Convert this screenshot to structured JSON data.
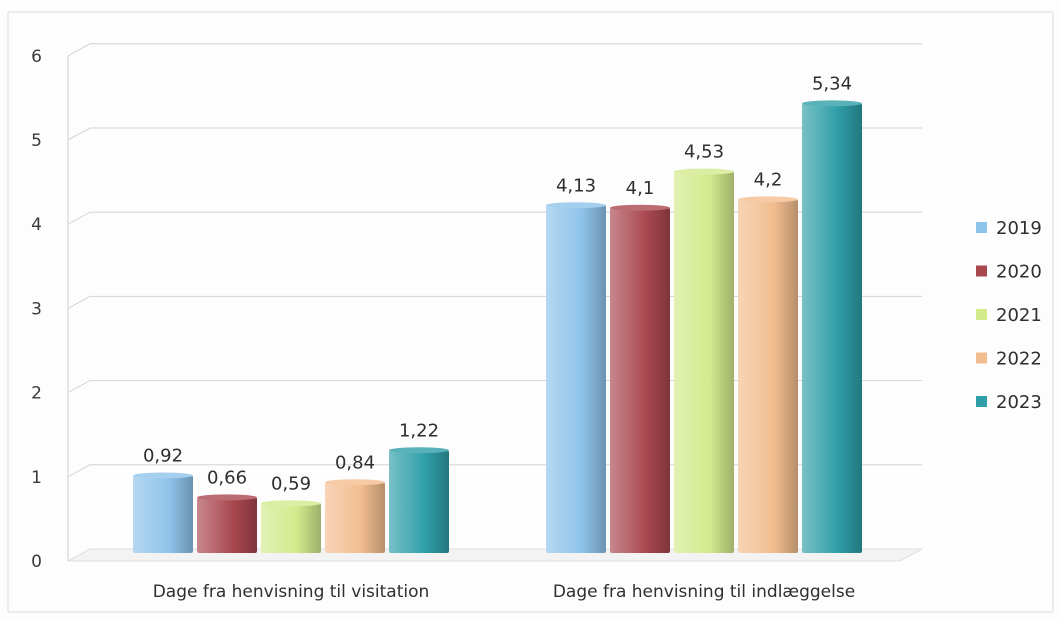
{
  "chart_data": {
    "type": "bar",
    "title": "",
    "xlabel": "",
    "ylabel": "",
    "categories": [
      "Dage fra henvisning til visitation",
      "Dage fra henvisning til indlæggelse"
    ],
    "series": [
      {
        "name": "2019",
        "values": [
          0.92,
          4.13
        ],
        "labels": [
          "0,92",
          "4,13"
        ],
        "color": "#8ec3ea"
      },
      {
        "name": "2020",
        "values": [
          0.66,
          4.1
        ],
        "labels": [
          "0,66",
          "4,1"
        ],
        "color": "#a9474f"
      },
      {
        "name": "2021",
        "values": [
          0.59,
          4.53
        ],
        "labels": [
          "0,59",
          "4,53"
        ],
        "color": "#d2ea8c"
      },
      {
        "name": "2022",
        "values": [
          0.84,
          4.2
        ],
        "labels": [
          "0,84",
          "4,2"
        ],
        "color": "#f2bd8f"
      },
      {
        "name": "2023",
        "values": [
          1.22,
          5.34
        ],
        "labels": [
          "1,22",
          "5,34"
        ],
        "color": "#2f9ea8"
      }
    ],
    "ylim": [
      0,
      6
    ],
    "yticks": [
      0,
      1,
      2,
      3,
      4,
      5,
      6
    ],
    "ytick_labels": [
      "0",
      "1",
      "2",
      "3",
      "4",
      "5",
      "6"
    ],
    "grid": true,
    "legend_position": "right"
  }
}
